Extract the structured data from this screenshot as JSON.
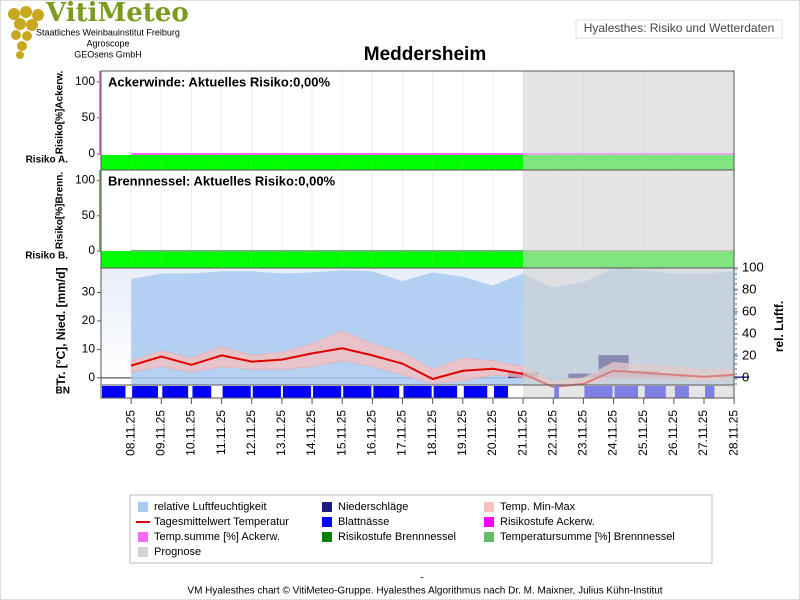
{
  "header": {
    "logo": "VitiMeteo",
    "org": [
      "Staatliches Weinbauinstitut Freiburg",
      "Agroscope",
      "GEOsens GmbH"
    ],
    "tab": "Hyalesthes: Risiko und Wetterdaten"
  },
  "chart_data": {
    "type": "combo",
    "title": "Meddersheim",
    "x": [
      "08.11.25",
      "09.11.25",
      "10.11.25",
      "11.11.25",
      "12.11.25",
      "13.11.25",
      "14.11.25",
      "15.11.25",
      "16.11.25",
      "17.11.25",
      "18.11.25",
      "19.11.25",
      "20.11.25",
      "21.11.25",
      "22.11.25",
      "23.11.25",
      "24.11.25",
      "25.11.25",
      "26.11.25",
      "27.11.25",
      "28.11.25"
    ],
    "prognose": {
      "name": "Prognose",
      "from": "22.11.25",
      "color": "#d3d3d3"
    },
    "panels": [
      {
        "annotation": "Ackerwinde: Aktuelles Risiko:0,00%",
        "ylabel": "Risiko[%]Ackerw.",
        "band_label": "Risiko A.",
        "ylim": [
          0,
          115
        ],
        "yticks": [
          0,
          50,
          100
        ],
        "series": [
          {
            "name": "Temp.summe [%] Ackerw.",
            "type": "line",
            "color": "#ff66ff",
            "values": [
              0,
              0,
              0,
              0,
              0,
              0,
              0,
              0,
              0,
              0,
              0,
              0,
              0,
              0,
              0,
              0,
              0,
              0,
              0,
              0,
              0
            ]
          }
        ],
        "risk": {
          "name": "Risikostufe Ackerw.",
          "color": "#ff00ff",
          "level_colors": [
            "#00ff00"
          ],
          "values": [
            0,
            0,
            0,
            0,
            0,
            0,
            0,
            0,
            0,
            0,
            0,
            0,
            0,
            0,
            0,
            0,
            0,
            0,
            0,
            0,
            0
          ]
        }
      },
      {
        "annotation": "Brennnessel: Aktuelles Risiko:0,00%",
        "ylabel": "Risiko[%]Brenn.",
        "band_label": "Risiko B.",
        "ylim": [
          0,
          115
        ],
        "yticks": [
          0,
          50,
          100
        ],
        "series": [
          {
            "name": "Temperatursumme [%] Brennnessel",
            "type": "line",
            "color": "#66bb66",
            "values": [
              0,
              0,
              0,
              0,
              0,
              0,
              0,
              0,
              0,
              0,
              0,
              0,
              0,
              0,
              0,
              0,
              0,
              0,
              0,
              0,
              0
            ]
          }
        ],
        "risk": {
          "name": "Risikostufe Brennnessel",
          "color": "#008000",
          "level_colors": [
            "#00ff00"
          ],
          "values": [
            0,
            0,
            0,
            0,
            0,
            0,
            0,
            0,
            0,
            0,
            0,
            0,
            0,
            0,
            0,
            0,
            0,
            0,
            0,
            0,
            0
          ]
        }
      }
    ],
    "weather": {
      "ylabel": "Tr. [°C], Nied. [mm/d]",
      "y2label": "rel. Luftf.",
      "band_label": "BN",
      "ylim": [
        -2.5,
        38.6
      ],
      "yticks": [
        0,
        10,
        20,
        30
      ],
      "y2lim": [
        -6.5,
        100
      ],
      "y2ticks": [
        0,
        20,
        40,
        60,
        80,
        100
      ],
      "series": [
        {
          "name": "relative Luftfeuchtigkeit",
          "type": "area",
          "axis": "y2",
          "color": "#a9c9f0",
          "values": [
            90,
            95,
            95,
            97,
            97,
            95,
            96,
            98,
            97,
            88,
            96,
            92,
            84,
            95,
            82,
            87,
            100,
            98,
            95,
            95,
            97
          ]
        },
        {
          "name": "Niederschläge",
          "type": "bar",
          "color": "#1c1c80",
          "values": [
            0,
            0,
            0,
            0,
            0,
            0,
            0,
            0,
            0,
            0,
            0,
            0,
            0,
            2,
            0,
            1.5,
            8,
            2.5,
            1,
            0,
            0.5
          ]
        },
        {
          "name": "Temp. Min-Max",
          "type": "band",
          "color": "#f5c0c0",
          "values": [
            6,
            9.5,
            7,
            11,
            8,
            9,
            12,
            16.5,
            12,
            9,
            3,
            7,
            6,
            4,
            -1,
            0,
            5.5,
            4.5,
            4,
            3,
            3
          ],
          "min": [
            2,
            4,
            2,
            4,
            3,
            3,
            4,
            6,
            4,
            1,
            -2,
            -1,
            1,
            0,
            -2.5,
            -2.5,
            0,
            0,
            -0.5,
            -1,
            -0.5
          ]
        },
        {
          "name": "Tagesmittelwert Temperatur",
          "type": "line",
          "color": "#e00000",
          "values": [
            4.3,
            7.5,
            4.6,
            7.9,
            5.7,
            6.4,
            8.6,
            10.4,
            7.9,
            5.0,
            -0.4,
            2.5,
            3.2,
            1.4,
            -3.2,
            -2.1,
            2.5,
            1.8,
            1.1,
            0.4,
            1.1
          ]
        },
        {
          "name": "Blattnässe",
          "type": "strip",
          "color": "#0000ff",
          "values": [
            20,
            22,
            22,
            16,
            24,
            24,
            24,
            24,
            24,
            22,
            24,
            20,
            20,
            12,
            0,
            4,
            24,
            20,
            18,
            12,
            8
          ]
        }
      ]
    }
  },
  "footer": {
    "dash": "-",
    "text": "VM Hyalesthes chart © VitiMeteo-Gruppe. Hyalesthes Algorithmus nach Dr. M. Maixner, Julius Kühn-Institut"
  }
}
